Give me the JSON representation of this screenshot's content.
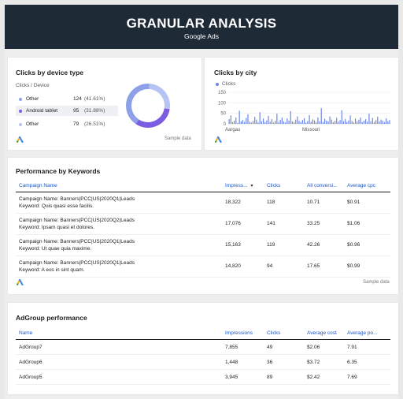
{
  "header": {
    "title": "GRANULAR ANALYSIS",
    "subtitle": "Google Ads"
  },
  "device": {
    "title": "Clicks by device type",
    "dimension_label": "Clicks / Device",
    "items": [
      {
        "label": "Other",
        "value": "124",
        "pct": "(41.61%)",
        "color": "#8ea0e8"
      },
      {
        "label": "Android tablet",
        "value": "95",
        "pct": "(31.88%)",
        "color": "#7c5ce0"
      },
      {
        "label": "Other",
        "value": "79",
        "pct": "(26.51%)",
        "color": "#b7c4f3"
      }
    ],
    "sample": "Sample data"
  },
  "city": {
    "title": "Clicks by city",
    "legend": "Clicks",
    "sample": "Sample data",
    "chart_data": {
      "type": "bar",
      "title": "Clicks by city",
      "series": [
        {
          "name": "Clicks",
          "values": [
            22,
            40,
            8,
            15,
            30,
            5,
            62,
            12,
            18,
            9,
            28,
            45,
            10,
            6,
            14,
            33,
            20,
            7,
            55,
            12,
            25,
            8,
            16,
            38,
            10,
            22,
            6,
            14,
            48,
            9,
            19,
            30,
            11,
            7,
            26,
            15,
            60,
            12,
            8,
            20,
            35,
            14,
            9,
            18,
            27,
            6,
            13,
            42,
            10,
            21,
            16,
            8,
            30,
            12,
            74,
            9,
            24,
            15,
            11,
            35,
            20,
            8,
            14,
            28,
            10,
            18,
            65,
            12,
            22,
            9,
            16,
            40,
            13,
            7,
            25,
            11,
            19,
            30,
            8,
            15,
            22,
            10,
            48,
            12,
            28,
            9,
            17,
            34,
            11,
            20,
            14,
            8,
            26,
            12,
            18
          ]
        }
      ],
      "ylim": [
        0,
        150
      ],
      "yticks": [
        "0",
        "50",
        "100",
        "150"
      ],
      "xtick_labels": [
        "Aargau",
        "Missouri"
      ]
    }
  },
  "keywords": {
    "title": "Performance by Keywords",
    "columns": [
      "Campaign Name",
      "Impress...",
      "Clicks",
      "All conversi...",
      "Average cpc"
    ],
    "rows": [
      {
        "c1": "Campaign Name: Banners|PCC|US|2020Q1|Leads",
        "c2": "Keyword: Quis quasi esse facilis.",
        "imp": "18,322",
        "clicks": "118",
        "conv": "10.71",
        "cpc": "$0.91"
      },
      {
        "c1": "Campaign Name: Banners|PCC|US|2020Q2|Leads",
        "c2": "Keyword: Ipsam quasi et dolores.",
        "imp": "17,076",
        "clicks": "141",
        "conv": "33.25",
        "cpc": "$1.06"
      },
      {
        "c1": "Campaign Name: Banners|PCC|US|2020Q1|Leads",
        "c2": "Keyword: Ut quae quia maxime.",
        "imp": "15,163",
        "clicks": "119",
        "conv": "42.26",
        "cpc": "$0.96"
      },
      {
        "c1": "Campaign Name: Banners|PCC|US|2020Q1|Leads",
        "c2": "Keyword: A eos in sint quam.",
        "imp": "14,820",
        "clicks": "94",
        "conv": "17.65",
        "cpc": "$0.99"
      }
    ],
    "sample": "Sample data"
  },
  "adgroup": {
    "title": "AdGroup performance",
    "columns": [
      "Name",
      "Impressions",
      "Clicks",
      "Average cost",
      "Average po..."
    ],
    "rows": [
      {
        "name": "AdGroup7",
        "imp": "7,855",
        "clicks": "49",
        "cost": "$2.06",
        "pos": "7.91"
      },
      {
        "name": "AdGroup6",
        "imp": "1,448",
        "clicks": "36",
        "cost": "$3.72",
        "pos": "6.35"
      },
      {
        "name": "AdGroup5",
        "imp": "3,945",
        "clicks": "89",
        "cost": "$2.42",
        "pos": "7.69"
      }
    ]
  }
}
